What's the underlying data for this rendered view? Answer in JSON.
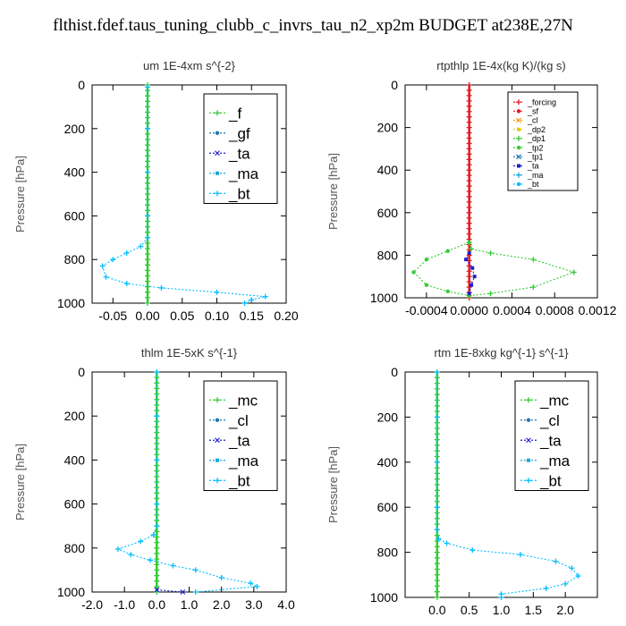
{
  "figure_title": "flthist.fdef.taus_tuning_clubb_c_invrs_tau_n2_xp2m  BUDGET at238E,27N",
  "chart_data": [
    {
      "type": "line",
      "title": "um   1E-4xm s^{-2}",
      "xlabel": "",
      "ylabel": "Pressure [hPa]",
      "xlim": [
        -0.08,
        0.2
      ],
      "ylim": [
        1000,
        0
      ],
      "xticks": [
        -0.05,
        0.0,
        0.05,
        0.1,
        0.15,
        0.2
      ],
      "xtick_labels": [
        "-0.05",
        "0.00",
        "0.05",
        "0.10",
        "0.15",
        "0.20"
      ],
      "yticks": [
        0,
        200,
        400,
        600,
        800,
        1000
      ],
      "legend": "top-right",
      "legend_style": "large",
      "series": [
        {
          "name": "_f",
          "color": "#33cc33",
          "points": [
            [
              0,
              10
            ],
            [
              0,
              100
            ],
            [
              0,
              200
            ],
            [
              0,
              300
            ],
            [
              0,
              400
            ],
            [
              0,
              500
            ],
            [
              0,
              600
            ],
            [
              0,
              700
            ],
            [
              0,
              800
            ],
            [
              0,
              900
            ],
            [
              0,
              1000
            ]
          ]
        },
        {
          "name": "_gf",
          "color": "#1f77b4",
          "points": []
        },
        {
          "name": "_ta",
          "color": "#1f1fcc",
          "points": []
        },
        {
          "name": "_ma",
          "color": "#19a7e0",
          "points": []
        },
        {
          "name": "_bt",
          "color": "#00bfff",
          "points": [
            [
              0,
              10
            ],
            [
              0,
              200
            ],
            [
              0,
              400
            ],
            [
              0,
              600
            ],
            [
              0,
              700
            ],
            [
              -0.01,
              740
            ],
            [
              -0.03,
              770
            ],
            [
              -0.05,
              800
            ],
            [
              -0.065,
              830
            ],
            [
              -0.06,
              880
            ],
            [
              -0.03,
              910
            ],
            [
              0.02,
              930
            ],
            [
              0.1,
              950
            ],
            [
              0.17,
              970
            ],
            [
              0.15,
              985
            ],
            [
              0.14,
              1000
            ]
          ]
        }
      ]
    },
    {
      "type": "line",
      "title": "rtpthlp   1E-4x(kg K)/(kg s)",
      "xlabel": "",
      "ylabel": "Pressure [hPa]",
      "xlim": [
        -0.0006,
        0.0012
      ],
      "ylim": [
        1000,
        0
      ],
      "xticks": [
        -0.0004,
        0.0,
        0.0004,
        0.0008,
        0.0012
      ],
      "xtick_labels": [
        "-0.0004",
        "0.0000",
        "0.0004",
        "0.0008",
        "0.0012"
      ],
      "yticks": [
        0,
        200,
        400,
        600,
        800,
        1000
      ],
      "legend": "top-right",
      "legend_style": "small",
      "series": [
        {
          "name": "_forcing",
          "color": "#e6191e",
          "points": [
            [
              0,
              0
            ],
            [
              0,
              1000
            ]
          ]
        },
        {
          "name": "_sf",
          "color": "#e6191e",
          "points": []
        },
        {
          "name": "_cl",
          "color": "#ff9900",
          "points": []
        },
        {
          "name": "_dp2",
          "color": "#e6c800",
          "points": []
        },
        {
          "name": "_dp1",
          "color": "#33cc33",
          "points": [
            [
              0,
              740
            ],
            [
              2e-05,
              770
            ],
            [
              0.0002,
              790
            ],
            [
              0.0006,
              820
            ],
            [
              0.00098,
              880
            ],
            [
              0.0006,
              950
            ],
            [
              0.0002,
              980
            ],
            [
              0,
              990
            ]
          ]
        },
        {
          "name": "_tp2",
          "color": "#33cc33",
          "points": [
            [
              0,
              740
            ],
            [
              -0.0002,
              780
            ],
            [
              -0.0004,
              820
            ],
            [
              -0.00052,
              880
            ],
            [
              -0.0004,
              940
            ],
            [
              -0.0002,
              970
            ],
            [
              0,
              990
            ]
          ]
        },
        {
          "name": "_tp1",
          "color": "#1f77b4",
          "points": []
        },
        {
          "name": "_ta",
          "color": "#1f1fcc",
          "points": [
            [
              0,
              790
            ],
            [
              -3e-05,
              820
            ],
            [
              3e-05,
              860
            ],
            [
              5e-05,
              900
            ],
            [
              2e-05,
              940
            ],
            [
              0,
              980
            ]
          ]
        },
        {
          "name": "_ma",
          "color": "#19a7e0",
          "points": []
        },
        {
          "name": "_bt",
          "color": "#00bfff",
          "points": []
        }
      ]
    },
    {
      "type": "line",
      "title": "thlm   1E-5xK s^{-1}",
      "xlabel": "",
      "ylabel": "Pressure [hPa]",
      "xlim": [
        -2.0,
        4.0
      ],
      "ylim": [
        1000,
        0
      ],
      "xticks": [
        -2.0,
        -1.0,
        0.0,
        1.0,
        2.0,
        3.0,
        4.0
      ],
      "xtick_labels": [
        "-2.0",
        "-1.0",
        "0.0",
        "1.0",
        "2.0",
        "3.0",
        "4.0"
      ],
      "yticks": [
        0,
        200,
        400,
        600,
        800,
        1000
      ],
      "legend": "top-right",
      "legend_style": "large",
      "series": [
        {
          "name": "_mc",
          "color": "#33cc33",
          "points": [
            [
              0,
              0
            ],
            [
              0,
              100
            ],
            [
              0,
              200
            ],
            [
              0,
              300
            ],
            [
              0,
              400
            ],
            [
              0,
              500
            ],
            [
              0,
              600
            ],
            [
              0,
              700
            ],
            [
              0,
              800
            ],
            [
              0,
              900
            ],
            [
              0,
              1000
            ]
          ]
        },
        {
          "name": "_cl",
          "color": "#1f77b4",
          "points": []
        },
        {
          "name": "_ta",
          "color": "#1f1fcc",
          "points": [
            [
              0,
              990
            ],
            [
              0.8,
              1000
            ]
          ]
        },
        {
          "name": "_ma",
          "color": "#19a7e0",
          "points": []
        },
        {
          "name": "_bt",
          "color": "#00bfff",
          "points": [
            [
              0,
              0
            ],
            [
              0,
              200
            ],
            [
              0,
              400
            ],
            [
              0,
              600
            ],
            [
              0,
              700
            ],
            [
              -0.1,
              740
            ],
            [
              -0.5,
              770
            ],
            [
              -1.2,
              805
            ],
            [
              -0.8,
              830
            ],
            [
              -0.2,
              855
            ],
            [
              0.5,
              880
            ],
            [
              1.2,
              900
            ],
            [
              2.0,
              935
            ],
            [
              2.9,
              960
            ],
            [
              3.1,
              975
            ],
            [
              1.2,
              1000
            ]
          ]
        }
      ]
    },
    {
      "type": "line",
      "title": "rtm   1E-8xkg kg^{-1} s^{-1}",
      "xlabel": "",
      "ylabel": "Pressure [hPa]",
      "xlim": [
        -0.5,
        2.5
      ],
      "ylim": [
        1000,
        0
      ],
      "xticks": [
        0.0,
        0.5,
        1.0,
        1.5,
        2.0
      ],
      "xtick_labels": [
        "0.0",
        "0.5",
        "1.0",
        "1.5",
        "2.0"
      ],
      "yticks": [
        0,
        200,
        400,
        600,
        800,
        1000
      ],
      "legend": "top-right",
      "legend_style": "large",
      "series": [
        {
          "name": "_mc",
          "color": "#33cc33",
          "points": [
            [
              0,
              0
            ],
            [
              0,
              100
            ],
            [
              0,
              200
            ],
            [
              0,
              300
            ],
            [
              0,
              400
            ],
            [
              0,
              500
            ],
            [
              0,
              600
            ],
            [
              0,
              700
            ],
            [
              0,
              800
            ],
            [
              0,
              900
            ],
            [
              0,
              1000
            ]
          ]
        },
        {
          "name": "_cl",
          "color": "#1f77b4",
          "points": []
        },
        {
          "name": "_ta",
          "color": "#1f1fcc",
          "points": []
        },
        {
          "name": "_ma",
          "color": "#19a7e0",
          "points": []
        },
        {
          "name": "_bt",
          "color": "#00bfff",
          "points": [
            [
              0,
              0
            ],
            [
              0,
              200
            ],
            [
              0,
              400
            ],
            [
              0,
              600
            ],
            [
              0,
              700
            ],
            [
              0.02,
              740
            ],
            [
              0.15,
              760
            ],
            [
              0.55,
              790
            ],
            [
              1.3,
              810
            ],
            [
              1.85,
              840
            ],
            [
              2.1,
              870
            ],
            [
              2.2,
              905
            ],
            [
              2.0,
              940
            ],
            [
              1.7,
              960
            ],
            [
              1.0,
              985
            ],
            [
              1.0,
              1000
            ]
          ]
        }
      ]
    }
  ]
}
